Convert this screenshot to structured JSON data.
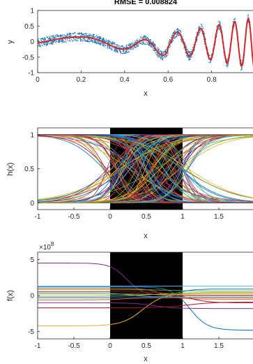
{
  "chart_data": [
    {
      "type": "scatter",
      "title": "RMSE = 0.008824",
      "xlabel": "x",
      "ylabel": "y",
      "xlim": [
        0,
        1
      ],
      "ylim": [
        -1,
        1
      ],
      "xticks": [
        "0",
        "0.2",
        "0.4",
        "0.6",
        "0.8",
        "1"
      ],
      "yticks": [
        "-1",
        "-0.5",
        "0",
        "0.5",
        "1"
      ],
      "grid": false,
      "colors": {
        "points": "#1f77b4",
        "fit": "#d62728"
      },
      "fit_curve": {
        "x": [
          0,
          0.05,
          0.1,
          0.15,
          0.2,
          0.25,
          0.3,
          0.35,
          0.4,
          0.45,
          0.5,
          0.55,
          0.6,
          0.65,
          0.7,
          0.75,
          0.8,
          0.85,
          0.9,
          0.95,
          1
        ],
        "y": [
          -0.05,
          -0.05,
          -0.04,
          -0.03,
          -0.06,
          -0.1,
          -0.17,
          -0.13,
          0.05,
          0.22,
          0.15,
          -0.28,
          -0.3,
          0.38,
          0.25,
          -0.58,
          0.45,
          0.48,
          -0.82,
          0.62,
          0.8
        ]
      }
    },
    {
      "type": "line",
      "xlabel": "x",
      "ylabel": "h(x)",
      "xlim": [
        -1,
        2
      ],
      "ylim": [
        -0.1,
        1.1
      ],
      "xticks": [
        "-1",
        "-0.5",
        "0",
        "0.5",
        "1",
        "1.5",
        "2"
      ],
      "yticks": [
        "0",
        "0.5",
        "1"
      ],
      "shaded_region": [
        0,
        1
      ],
      "shade_color": "#000000"
    },
    {
      "type": "line",
      "xlabel": "x",
      "ylabel": "f(x)",
      "axis_multiplier": "×10^8",
      "xlim": [
        -1,
        2
      ],
      "ylim": [
        -6,
        6
      ],
      "xticks": [
        "-1",
        "-0.5",
        "0",
        "0.5",
        "1",
        "1.5",
        "2"
      ],
      "yticks": [
        "-5",
        "0",
        "5"
      ],
      "shaded_region": [
        0,
        1
      ],
      "shade_color": "#000000",
      "series": [
        {
          "start": 4.5,
          "end": 0.0,
          "color": "#7e2f8e"
        },
        {
          "start": -4.2,
          "end": 0.3,
          "color": "#edb120"
        },
        {
          "start": 1.2,
          "end": -4.8,
          "color": "#0072bd"
        },
        {
          "start": 1.3,
          "end": 1.3,
          "color": "#4dbeee"
        },
        {
          "start": 1.0,
          "end": -0.5,
          "color": "#d95319"
        },
        {
          "start": 0.8,
          "end": 0.6,
          "color": "#77ac30"
        },
        {
          "start": 0.5,
          "end": -1.0,
          "color": "#a2142f"
        },
        {
          "start": -0.3,
          "end": 0.9,
          "color": "#0072bd"
        },
        {
          "start": -0.6,
          "end": -0.3,
          "color": "#d95319"
        },
        {
          "start": -1.0,
          "end": -1.8,
          "color": "#7e2f8e"
        },
        {
          "start": -1.7,
          "end": -0.9,
          "color": "#a2142f"
        },
        {
          "start": 0.2,
          "end": 0.1,
          "color": "#edb120"
        },
        {
          "start": -0.1,
          "end": 0.4,
          "color": "#77ac30"
        },
        {
          "start": 0.3,
          "end": -0.2,
          "color": "#4dbeee"
        }
      ]
    }
  ]
}
